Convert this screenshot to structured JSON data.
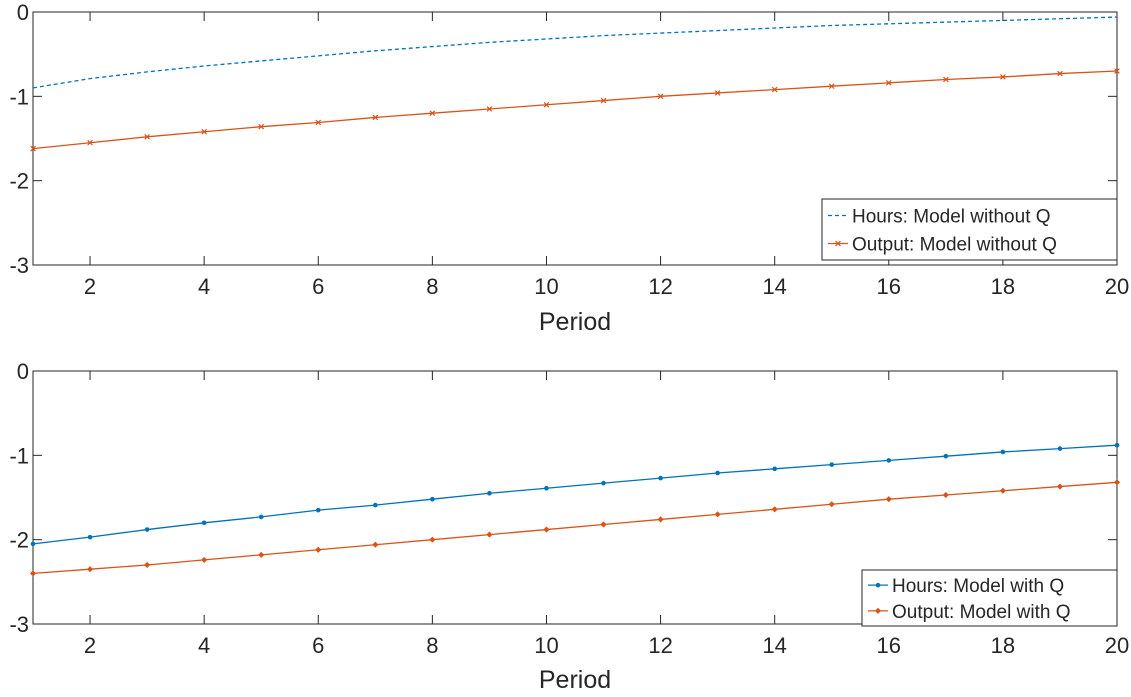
{
  "chart_data": [
    {
      "type": "line",
      "xlabel": "Period",
      "ylabel": "",
      "xlim": [
        1,
        20
      ],
      "ylim": [
        -3,
        0
      ],
      "xticks": [
        2,
        4,
        6,
        8,
        10,
        12,
        14,
        16,
        18,
        20
      ],
      "yticks": [
        0,
        -1,
        -2,
        -3
      ],
      "ytick_labels": [
        "0",
        "-1",
        "-2",
        "-3"
      ],
      "grid": false,
      "legend_position": "bottom-right",
      "x": [
        1,
        2,
        3,
        4,
        5,
        6,
        7,
        8,
        9,
        10,
        11,
        12,
        13,
        14,
        15,
        16,
        17,
        18,
        19,
        20
      ],
      "series": [
        {
          "name": "Hours: Model without Q",
          "color": "#0072BD",
          "style": "dashed",
          "marker": "none",
          "values": [
            -0.9,
            -0.79,
            -0.71,
            -0.64,
            -0.58,
            -0.52,
            -0.46,
            -0.41,
            -0.36,
            -0.32,
            -0.28,
            -0.25,
            -0.22,
            -0.19,
            -0.16,
            -0.14,
            -0.12,
            -0.1,
            -0.08,
            -0.06
          ]
        },
        {
          "name": "Output: Model without Q",
          "color": "#D95319",
          "style": "solid",
          "marker": "x",
          "values": [
            -1.62,
            -1.55,
            -1.48,
            -1.42,
            -1.36,
            -1.31,
            -1.25,
            -1.2,
            -1.15,
            -1.1,
            -1.05,
            -1.0,
            -0.96,
            -0.92,
            -0.88,
            -0.84,
            -0.8,
            -0.77,
            -0.73,
            -0.7
          ]
        }
      ]
    },
    {
      "type": "line",
      "xlabel": "Period",
      "ylabel": "",
      "xlim": [
        1,
        20
      ],
      "ylim": [
        -3,
        0
      ],
      "xticks": [
        2,
        4,
        6,
        8,
        10,
        12,
        14,
        16,
        18,
        20
      ],
      "yticks": [
        0,
        -1,
        -2,
        -3
      ],
      "ytick_labels": [
        "0",
        "-1",
        "-2",
        "-3"
      ],
      "grid": false,
      "legend_position": "bottom-right",
      "x": [
        1,
        2,
        3,
        4,
        5,
        6,
        7,
        8,
        9,
        10,
        11,
        12,
        13,
        14,
        15,
        16,
        17,
        18,
        19,
        20
      ],
      "series": [
        {
          "name": "Hours: Model with Q",
          "color": "#0072BD",
          "style": "solid",
          "marker": "dot",
          "values": [
            -2.05,
            -1.97,
            -1.88,
            -1.8,
            -1.73,
            -1.65,
            -1.59,
            -1.52,
            -1.45,
            -1.39,
            -1.33,
            -1.27,
            -1.21,
            -1.16,
            -1.11,
            -1.06,
            -1.01,
            -0.96,
            -0.92,
            -0.88
          ]
        },
        {
          "name": "Output: Model with Q",
          "color": "#D95319",
          "style": "solid",
          "marker": "diamond",
          "values": [
            -2.4,
            -2.35,
            -2.3,
            -2.24,
            -2.18,
            -2.12,
            -2.06,
            -2.0,
            -1.94,
            -1.88,
            -1.82,
            -1.76,
            -1.7,
            -1.64,
            -1.58,
            -1.52,
            -1.47,
            -1.42,
            -1.37,
            -1.32
          ]
        }
      ]
    }
  ]
}
